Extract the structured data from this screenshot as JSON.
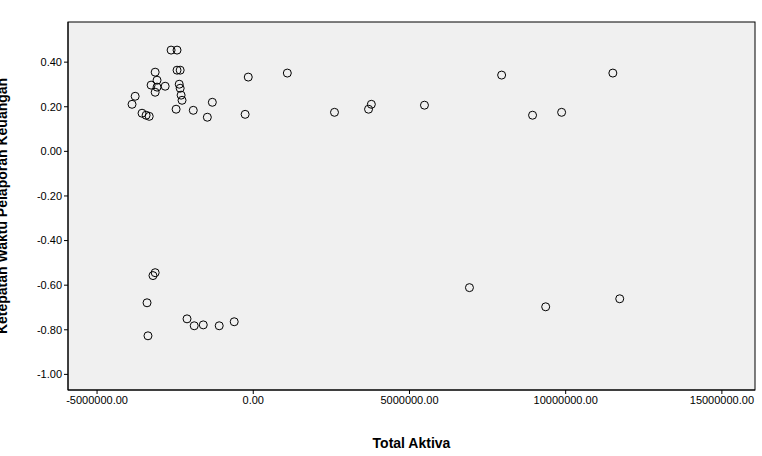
{
  "chart_data": {
    "type": "scatter",
    "x_label": "Total Aktiva",
    "y_label": "Ketepatan Waktu Pelaporan Keuangan",
    "xlim": [
      -5930000,
      16060000
    ],
    "ylim": [
      -1.07,
      0.58
    ],
    "xticks": [
      {
        "value": -5000000,
        "label": "-5000000.00"
      },
      {
        "value": 0,
        "label": "0.00"
      },
      {
        "value": 5000000,
        "label": "5000000.00"
      },
      {
        "value": 10000000,
        "label": "10000000.00"
      },
      {
        "value": 15000000,
        "label": "15000000.00"
      }
    ],
    "yticks": [
      {
        "value": -1,
        "label": "-1.00"
      },
      {
        "value": -0.8,
        "label": "-0.80"
      },
      {
        "value": -0.6,
        "label": "-0.60"
      },
      {
        "value": -0.4,
        "label": "-0.40"
      },
      {
        "value": -0.2,
        "label": "-0.20"
      },
      {
        "value": 0,
        "label": "0.00"
      },
      {
        "value": 0.2,
        "label": "0.20"
      },
      {
        "value": 0.4,
        "label": "0.40"
      }
    ],
    "grid": false,
    "marker": "open_circle",
    "color": "#000000",
    "x": [
      -3880000,
      -3780000,
      -3560000,
      -3430000,
      -3330000,
      -3270000,
      -3140000,
      -3080000,
      -3080000,
      -3140000,
      -2820000,
      -2630000,
      -2440000,
      -2440000,
      -2340000,
      -2370000,
      -2340000,
      -2310000,
      -2280000,
      -2470000,
      -1920000,
      -1470000,
      -1310000,
      -160000,
      -260000,
      1090000,
      2600000,
      3690000,
      3780000,
      5480000,
      7950000,
      8940000,
      9870000,
      11510000,
      -3140000,
      -3210000,
      -3400000,
      -3370000,
      -2120000,
      -1890000,
      -1600000,
      -1090000,
      -610000,
      6920000,
      9360000,
      11730000
    ],
    "values": [
      0.211,
      0.247,
      0.171,
      0.162,
      0.157,
      0.297,
      0.355,
      0.319,
      0.288,
      0.265,
      0.292,
      0.454,
      0.454,
      0.364,
      0.364,
      0.301,
      0.283,
      0.252,
      0.229,
      0.189,
      0.184,
      0.153,
      0.22,
      0.333,
      0.166,
      0.351,
      0.175,
      0.189,
      0.211,
      0.207,
      0.342,
      0.162,
      0.175,
      0.351,
      -0.544,
      -0.557,
      -0.679,
      -0.827,
      -0.751,
      -0.782,
      -0.778,
      -0.782,
      -0.764,
      -0.611,
      -0.697,
      -0.661
    ]
  }
}
